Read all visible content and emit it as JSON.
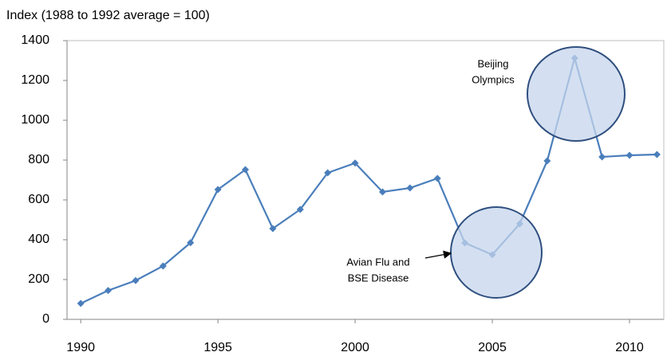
{
  "chart_data": {
    "type": "line",
    "y_label": "Index (1988 to 1992 average = 100)",
    "x": [
      1990,
      1991,
      1992,
      1993,
      1994,
      1995,
      1996,
      1997,
      1998,
      1999,
      2000,
      2001,
      2002,
      2003,
      2004,
      2005,
      2006,
      2007,
      2008,
      2009,
      2010,
      2011
    ],
    "values": [
      80,
      145,
      195,
      268,
      385,
      652,
      752,
      456,
      552,
      736,
      785,
      640,
      660,
      708,
      384,
      325,
      480,
      796,
      1312,
      816,
      824,
      828
    ],
    "color": "#4a7ebb",
    "xlim": [
      1989.5,
      2011.25
    ],
    "xticks": [
      1990,
      1995,
      2000,
      2005,
      2010
    ],
    "ylim": [
      0,
      1400
    ],
    "yticks": [
      0,
      200,
      400,
      600,
      800,
      1000,
      1200,
      1400
    ],
    "annotations": [
      [
        "Beijing",
        "Olympics"
      ],
      [
        "Avian Flu and",
        "BSE Disease"
      ]
    ]
  }
}
